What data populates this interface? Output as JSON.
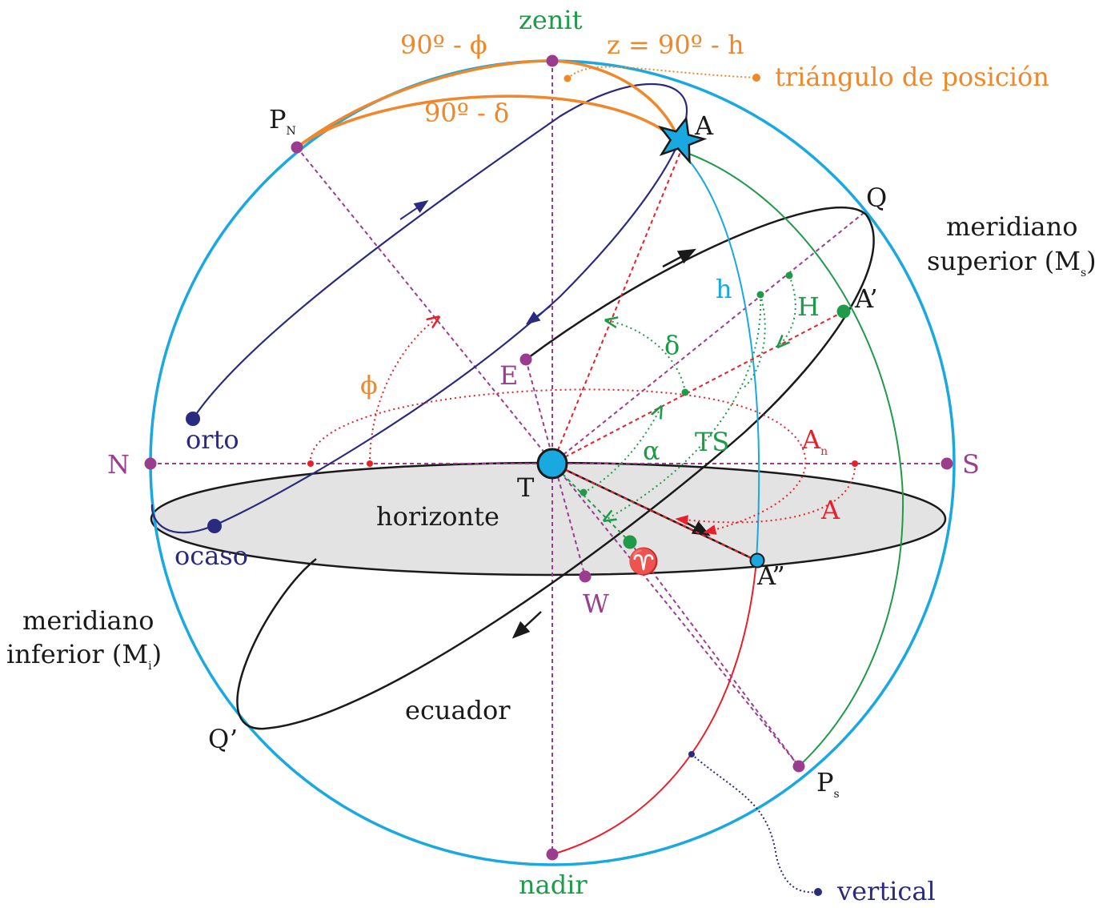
{
  "colors": {
    "sphere": "#1aa8e0",
    "purple": "#9b3d8e",
    "navy": "#2a2a7f",
    "green": "#1e9a48",
    "orange": "#f0872a",
    "red": "#e8202a",
    "black": "#1a1a1a",
    "horizon_fill": "#e3e3e3"
  },
  "labels": {
    "zenit": "zenit",
    "nadir": "nadir",
    "n": "N",
    "s": "S",
    "e": "E",
    "w": "W",
    "t": "T",
    "pn_main": "P",
    "pn_sub": "N",
    "ps_main": "P",
    "ps_sub": "s",
    "a": "A",
    "a_prime": "A’",
    "a_dbl": "A”",
    "q": "Q",
    "q_prime": "Q’",
    "orto": "orto",
    "ocaso": "ocaso",
    "horizonte": "horizonte",
    "ecuador": "ecuador",
    "vertical": "vertical",
    "triangulo": "triángulo de posición",
    "colat": "90º - ϕ",
    "codec": "90º - δ",
    "zenith_dist": "z = 90º - h",
    "h": "h",
    "H": "H",
    "delta": "δ",
    "alpha": "α",
    "ts": "TS",
    "phi": "ϕ",
    "an_main": "A",
    "an_sub": "n",
    "az": "A",
    "aries": "♈",
    "mer_sup_1": "meridiano",
    "mer_sup_2": "superior (M",
    "mer_sup_sub": "s",
    "mer_sup_close": ")",
    "mer_inf_1": "meridiano",
    "mer_inf_2": "inferior (M",
    "mer_inf_sub": "i",
    "mer_inf_close": ")"
  }
}
